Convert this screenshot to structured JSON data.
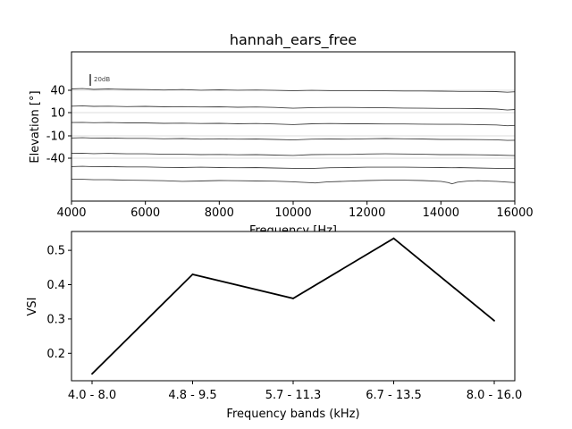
{
  "chart_data": [
    {
      "type": "line",
      "title": "hannah_ears_free",
      "xlabel": "Frequency [Hz]",
      "ylabel": "Elevation [°]",
      "xlim": [
        4000,
        16000
      ],
      "x_ticks": [
        "4000",
        "6000",
        "8000",
        "10000",
        "12000",
        "14000",
        "16000"
      ],
      "x_tick_values": [
        4000,
        6000,
        8000,
        10000,
        12000,
        14000,
        16000
      ],
      "y_ticks": [
        "40",
        "10",
        "-10",
        "-40"
      ],
      "scale_bar_label": "20dB",
      "grid": "horizontal lines at elevation ticks",
      "series": [
        {
          "points": [
            [
              4000,
              24
            ],
            [
              4300,
              26
            ],
            [
              4600,
              22
            ],
            [
              5000,
              24
            ],
            [
              5500,
              22
            ],
            [
              6000,
              21
            ],
            [
              6500,
              19
            ],
            [
              7000,
              21
            ],
            [
              7500,
              18
            ],
            [
              8000,
              20
            ],
            [
              8500,
              18
            ],
            [
              9000,
              19
            ],
            [
              9500,
              17
            ],
            [
              10000,
              15
            ],
            [
              10500,
              17
            ],
            [
              11000,
              16
            ],
            [
              11500,
              16
            ],
            [
              12000,
              16
            ],
            [
              12500,
              15
            ],
            [
              13000,
              14
            ],
            [
              13500,
              14
            ],
            [
              14000,
              13
            ],
            [
              14500,
              12
            ],
            [
              15000,
              12
            ],
            [
              15500,
              11
            ],
            [
              15800,
              8
            ],
            [
              16000,
              10
            ]
          ]
        },
        {
          "points": [
            [
              4000,
              14
            ],
            [
              4300,
              16
            ],
            [
              4600,
              13
            ],
            [
              5000,
              14
            ],
            [
              5500,
              12
            ],
            [
              6000,
              13
            ],
            [
              6500,
              11
            ],
            [
              7000,
              12
            ],
            [
              7500,
              10
            ],
            [
              8000,
              11
            ],
            [
              8500,
              9
            ],
            [
              9000,
              10
            ],
            [
              9500,
              8
            ],
            [
              10000,
              4
            ],
            [
              10500,
              7
            ],
            [
              11000,
              8
            ],
            [
              11500,
              8
            ],
            [
              12000,
              7
            ],
            [
              12500,
              6
            ],
            [
              13000,
              5
            ],
            [
              13500,
              4
            ],
            [
              14000,
              3
            ],
            [
              14500,
              3
            ],
            [
              15000,
              2
            ],
            [
              15500,
              0
            ],
            [
              15800,
              -5
            ],
            [
              16000,
              -2
            ]
          ]
        },
        {
          "points": [
            [
              4000,
              4
            ],
            [
              4300,
              5
            ],
            [
              4600,
              3
            ],
            [
              5000,
              4
            ],
            [
              5500,
              2
            ],
            [
              6000,
              2
            ],
            [
              6500,
              0
            ],
            [
              7000,
              1
            ],
            [
              7500,
              -1
            ],
            [
              8000,
              0
            ],
            [
              8500,
              -2
            ],
            [
              9000,
              -1
            ],
            [
              9500,
              -3
            ],
            [
              10000,
              -6
            ],
            [
              10500,
              -2
            ],
            [
              11000,
              -1
            ],
            [
              11500,
              -2
            ],
            [
              12000,
              -2
            ],
            [
              12500,
              -3
            ],
            [
              13000,
              -3
            ],
            [
              13500,
              -4
            ],
            [
              14000,
              -5
            ],
            [
              14500,
              -5
            ],
            [
              15000,
              -6
            ],
            [
              15500,
              -8
            ],
            [
              15800,
              -12
            ],
            [
              16000,
              -10
            ]
          ]
        },
        {
          "points": [
            [
              4000,
              -6
            ],
            [
              4300,
              -5
            ],
            [
              4600,
              -7
            ],
            [
              5000,
              -6
            ],
            [
              5500,
              -8
            ],
            [
              6000,
              -8
            ],
            [
              6500,
              -10
            ],
            [
              7000,
              -9
            ],
            [
              7500,
              -12
            ],
            [
              8000,
              -10
            ],
            [
              8500,
              -12
            ],
            [
              9000,
              -11
            ],
            [
              9500,
              -13
            ],
            [
              10000,
              -16
            ],
            [
              10500,
              -12
            ],
            [
              11000,
              -11
            ],
            [
              11500,
              -12
            ],
            [
              12000,
              -10
            ],
            [
              12500,
              -9
            ],
            [
              13000,
              -10
            ],
            [
              13500,
              -11
            ],
            [
              14000,
              -13
            ],
            [
              14500,
              -13
            ],
            [
              15000,
              -14
            ],
            [
              15500,
              -15
            ],
            [
              15800,
              -18
            ],
            [
              16000,
              -17
            ]
          ]
        },
        {
          "points": [
            [
              4000,
              -16
            ],
            [
              4300,
              -15
            ],
            [
              4600,
              -17
            ],
            [
              5000,
              -16
            ],
            [
              5500,
              -18
            ],
            [
              6000,
              -18
            ],
            [
              6500,
              -20
            ],
            [
              7000,
              -20
            ],
            [
              7500,
              -22
            ],
            [
              8000,
              -21
            ],
            [
              8500,
              -23
            ],
            [
              9000,
              -22
            ],
            [
              9500,
              -24
            ],
            [
              10000,
              -26
            ],
            [
              10500,
              -22
            ],
            [
              11000,
              -21
            ],
            [
              11500,
              -21
            ],
            [
              12000,
              -19
            ],
            [
              12500,
              -18
            ],
            [
              13000,
              -19
            ],
            [
              13500,
              -20
            ],
            [
              14000,
              -22
            ],
            [
              14500,
              -22
            ],
            [
              15000,
              -23
            ],
            [
              15500,
              -24
            ],
            [
              16000,
              -27
            ]
          ]
        },
        {
          "points": [
            [
              4000,
              -28
            ],
            [
              4300,
              -27
            ],
            [
              4600,
              -29
            ],
            [
              5000,
              -28
            ],
            [
              5500,
              -30
            ],
            [
              6000,
              -30
            ],
            [
              6500,
              -32
            ],
            [
              7000,
              -33
            ],
            [
              7500,
              -31
            ],
            [
              8000,
              -33
            ],
            [
              8500,
              -34
            ],
            [
              9000,
              -33
            ],
            [
              9500,
              -35
            ],
            [
              10000,
              -37
            ],
            [
              10500,
              -38
            ],
            [
              11000,
              -34
            ],
            [
              11500,
              -33
            ],
            [
              12000,
              -31
            ],
            [
              12500,
              -31
            ],
            [
              13000,
              -31
            ],
            [
              13500,
              -32
            ],
            [
              14000,
              -33
            ],
            [
              14300,
              -34
            ],
            [
              14500,
              -33
            ],
            [
              15000,
              -35
            ],
            [
              15500,
              -37
            ],
            [
              16000,
              -38
            ]
          ]
        },
        {
          "points": [
            [
              4000,
              -38
            ],
            [
              4300,
              -38
            ],
            [
              4600,
              -40
            ],
            [
              5000,
              -40
            ],
            [
              5500,
              -42
            ],
            [
              6000,
              -43
            ],
            [
              6500,
              -45
            ],
            [
              7000,
              -48
            ],
            [
              7500,
              -46
            ],
            [
              8000,
              -44
            ],
            [
              8500,
              -45
            ],
            [
              9000,
              -46
            ],
            [
              9500,
              -47
            ],
            [
              10000,
              -50
            ],
            [
              10300,
              -53
            ],
            [
              10600,
              -56
            ],
            [
              10900,
              -51
            ],
            [
              11500,
              -47
            ],
            [
              12000,
              -44
            ],
            [
              12500,
              -42
            ],
            [
              13000,
              -42
            ],
            [
              13500,
              -44
            ],
            [
              14000,
              -48
            ],
            [
              14200,
              -54
            ],
            [
              14300,
              -60
            ],
            [
              14450,
              -52
            ],
            [
              14700,
              -47
            ],
            [
              15000,
              -45
            ],
            [
              15500,
              -48
            ],
            [
              16000,
              -54
            ]
          ]
        }
      ]
    },
    {
      "type": "line",
      "xlabel": "Frequency bands (kHz)",
      "ylabel": "VSI",
      "categories": [
        "4.0 - 8.0",
        "4.8 - 9.5",
        "5.7 - 11.3",
        "6.7 - 13.5",
        "8.0 - 16.0"
      ],
      "values": [
        0.14,
        0.43,
        0.36,
        0.535,
        0.295
      ],
      "ylim": [
        0.12,
        0.555
      ],
      "y_ticks": [
        "0.2",
        "0.3",
        "0.4",
        "0.5"
      ],
      "y_tick_values": [
        0.2,
        0.3,
        0.4,
        0.5
      ]
    }
  ]
}
